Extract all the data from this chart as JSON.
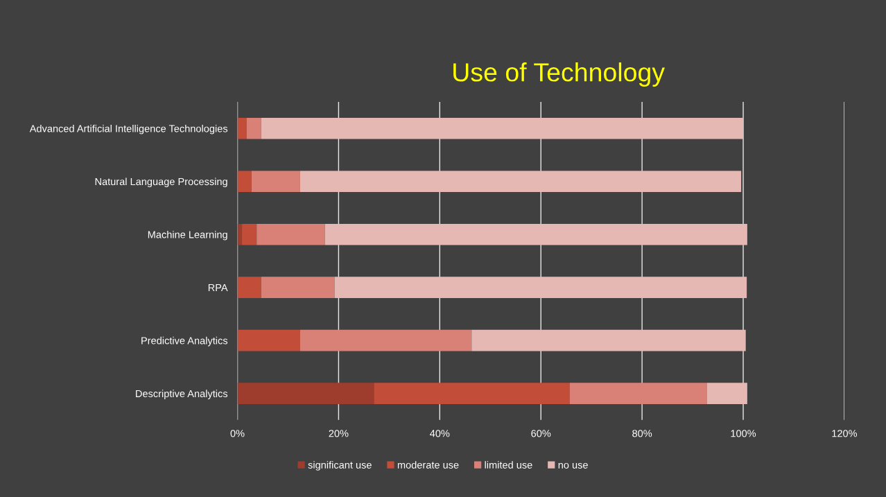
{
  "chart_data": {
    "type": "bar",
    "orientation": "horizontal",
    "stacked": true,
    "title": "Use of Technology",
    "categories": [
      "Advanced Artificial Intelligence Technologies",
      "Natural Language Processing",
      "Machine Learning",
      "RPA",
      "Predictive Analytics",
      "Descriptive Analytics"
    ],
    "series": [
      {
        "name": "significant use",
        "color": "#9e3d2e",
        "values": [
          0,
          0,
          0.9,
          0,
          0,
          27.0
        ]
      },
      {
        "name": "moderate use",
        "color": "#c24e3a",
        "values": [
          1.8,
          2.8,
          2.9,
          4.7,
          12.4,
          38.7
        ]
      },
      {
        "name": "limited use",
        "color": "#d98176",
        "values": [
          2.9,
          9.6,
          13.5,
          14.5,
          33.9,
          27.1
        ]
      },
      {
        "name": "no use",
        "color": "#e5b8b3",
        "values": [
          95.3,
          87.2,
          83.5,
          81.5,
          54.2,
          8.0
        ]
      }
    ],
    "xlim": [
      0,
      120
    ],
    "xticks": [
      {
        "value": 0,
        "label": "0%"
      },
      {
        "value": 20,
        "label": "20%"
      },
      {
        "value": 40,
        "label": "40%"
      },
      {
        "value": 60,
        "label": "60%"
      },
      {
        "value": 80,
        "label": "80%"
      },
      {
        "value": 100,
        "label": "100%"
      },
      {
        "value": 120,
        "label": "120%"
      }
    ],
    "grid": "x",
    "legend": "bottom"
  }
}
